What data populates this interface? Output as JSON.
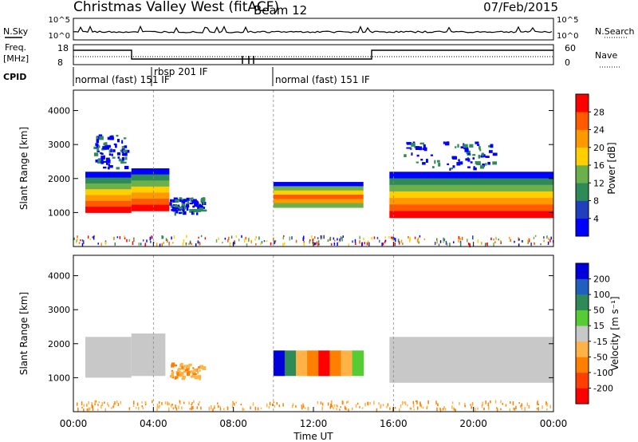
{
  "header": {
    "station": "Christmas Valley West (fitACF)",
    "beam": "Beam 12",
    "date": "07/Feb/2015"
  },
  "panels": {
    "nsky_label": "N.Sky",
    "nsky_ticks": [
      "10^5",
      "10^0"
    ],
    "nsearch_label": "N.Search",
    "freq_label": "Freq.",
    "freq_unit": "[MHz]",
    "freq_ticks": [
      "18",
      "8"
    ],
    "nave_label": "Nave",
    "nave_ticks": [
      "60",
      "0"
    ],
    "cpid_label": "CPID",
    "cpid_segments": [
      "normal (fast) 151 IF",
      "rbsp 201 IF",
      "normal (fast) 151 IF"
    ]
  },
  "colors": {
    "power": [
      "#0000ff",
      "#1f3fbf",
      "#2e8b57",
      "#6ab04c",
      "#ffd000",
      "#ff9900",
      "#ff5a00",
      "#ff0000"
    ],
    "velocity": [
      "#0000dd",
      "#1f5fbf",
      "#2e8b57",
      "#55cc33",
      "#c8c8c8",
      "#ffb347",
      "#ff8000",
      "#ff4000",
      "#ff0000"
    ],
    "ground": "#c8c8c8"
  },
  "chart_data": [
    {
      "type": "heatmap",
      "title": "Power",
      "xlabel": "Time UT",
      "ylabel": "Slant Range [km]",
      "x_ticks": [
        "00:00",
        "04:00",
        "08:00",
        "12:00",
        "16:00",
        "20:00",
        "00:00"
      ],
      "x_range_hours": [
        0,
        24
      ],
      "y_ticks": [
        1000,
        2000,
        3000,
        4000
      ],
      "ylim": [
        0,
        4600
      ],
      "colorbar": {
        "label": "Power [dB]",
        "ticks": [
          4,
          8,
          12,
          16,
          20,
          24,
          28
        ],
        "range": [
          0,
          32
        ]
      },
      "regions": [
        {
          "t": [
            0.6,
            2.9
          ],
          "r": [
            1000,
            2200
          ],
          "level": "strong",
          "note": "band"
        },
        {
          "t": [
            1.0,
            2.6
          ],
          "r": [
            2300,
            3300
          ],
          "level": "weak"
        },
        {
          "t": [
            2.9,
            4.8
          ],
          "r": [
            1050,
            2300
          ],
          "level": "strong"
        },
        {
          "t": [
            4.8,
            6.5
          ],
          "r": [
            1000,
            1450
          ],
          "level": "weak"
        },
        {
          "t": [
            10.0,
            14.5
          ],
          "r": [
            1150,
            1900
          ],
          "level": "mid"
        },
        {
          "t": [
            15.8,
            24.0
          ],
          "r": [
            850,
            2200
          ],
          "level": "strong"
        },
        {
          "t": [
            16.5,
            21.0
          ],
          "r": [
            2300,
            3100
          ],
          "level": "weak"
        }
      ]
    },
    {
      "type": "heatmap",
      "title": "Velocity",
      "xlabel": "Time UT",
      "ylabel": "Slant Range [km]",
      "x_ticks": [
        "00:00",
        "04:00",
        "08:00",
        "12:00",
        "16:00",
        "20:00",
        "00:00"
      ],
      "x_range_hours": [
        0,
        24
      ],
      "y_ticks": [
        1000,
        2000,
        3000,
        4000
      ],
      "ylim": [
        0,
        4600
      ],
      "colorbar": {
        "label": "Velocity [m s⁻¹]",
        "ticks": [
          200,
          100,
          50,
          15,
          -15,
          -50,
          -100,
          -200
        ],
        "range": [
          -250,
          250
        ]
      },
      "regions": [
        {
          "t": [
            0.6,
            2.9
          ],
          "r": [
            1000,
            2200
          ],
          "level": "ground"
        },
        {
          "t": [
            2.9,
            4.6
          ],
          "r": [
            1050,
            2300
          ],
          "level": "ground"
        },
        {
          "t": [
            4.8,
            6.5
          ],
          "r": [
            1000,
            1450
          ],
          "level": "slow-negative"
        },
        {
          "t": [
            10.0,
            14.5
          ],
          "r": [
            1050,
            1800
          ],
          "level": "mixed"
        },
        {
          "t": [
            15.8,
            24.0
          ],
          "r": [
            850,
            2200
          ],
          "level": "ground"
        }
      ]
    }
  ]
}
